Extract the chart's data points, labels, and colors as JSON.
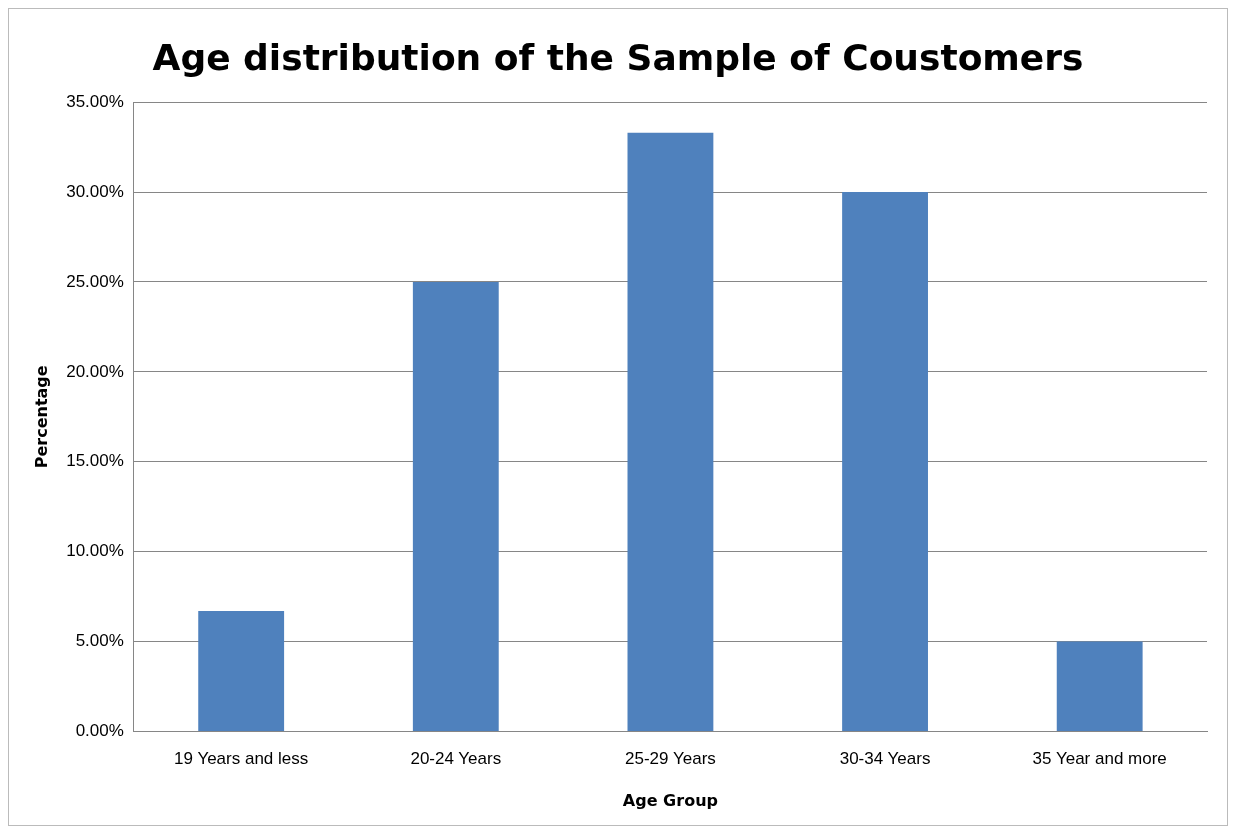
{
  "chart_data": {
    "type": "bar",
    "title": "Age distribution of the Sample of Coustomers",
    "xlabel": "Age Group",
    "ylabel": "Percentage",
    "categories": [
      "19 Years and less",
      "20-24 Years",
      "25-29 Years",
      "30-34 Years",
      "35 Year and more"
    ],
    "values": [
      6.7,
      25,
      33.3,
      30,
      5
    ],
    "color": "#4f81bd",
    "ylim": [
      0,
      35
    ],
    "yticks": [
      {
        "value": 0,
        "label": "0.00%"
      },
      {
        "value": 5,
        "label": "5.00%"
      },
      {
        "value": 10,
        "label": "10.00%"
      },
      {
        "value": 15,
        "label": "15.00%"
      },
      {
        "value": 20,
        "label": "20.00%"
      },
      {
        "value": 25,
        "label": "25.00%"
      },
      {
        "value": 30,
        "label": "30.00%"
      },
      {
        "value": 35,
        "label": "35.00%"
      }
    ],
    "grid": "y",
    "legend": false
  }
}
